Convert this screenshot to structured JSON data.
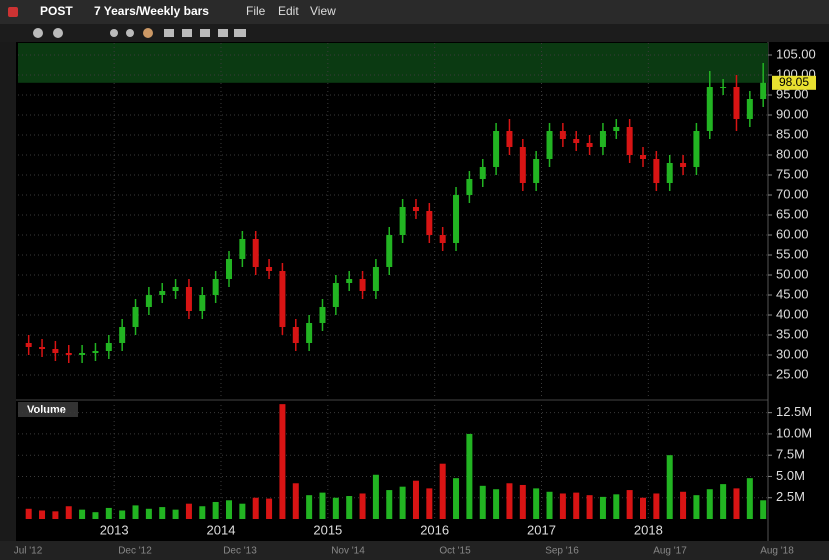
{
  "toolbar": {
    "symbol": "POST",
    "period": "7 Years/Weekly bars",
    "menu": [
      "File",
      "Edit",
      "View"
    ]
  },
  "chart_data": {
    "type": "candlestick",
    "x": [
      2012.2,
      2012.325,
      2012.45,
      2012.575,
      2012.7,
      2012.825,
      2012.95,
      2013.075,
      2013.2,
      2013.325,
      2013.45,
      2013.575,
      2013.7,
      2013.825,
      2013.95,
      2014.075,
      2014.2,
      2014.325,
      2014.45,
      2014.575,
      2014.7,
      2014.825,
      2014.95,
      2015.075,
      2015.2,
      2015.325,
      2015.45,
      2015.575,
      2015.7,
      2015.825,
      2015.95,
      2016.075,
      2016.2,
      2016.325,
      2016.45,
      2016.575,
      2016.7,
      2016.825,
      2016.95,
      2017.075,
      2017.2,
      2017.325,
      2017.45,
      2017.575,
      2017.7,
      2017.825,
      2017.95,
      2018.075,
      2018.2,
      2018.325,
      2018.45,
      2018.575,
      2018.7,
      2018.825,
      2018.95,
      2019.075
    ],
    "open": [
      33,
      32,
      31.5,
      30.5,
      30,
      30.5,
      31,
      33,
      37,
      42,
      45,
      46,
      47,
      41,
      45,
      49,
      54,
      59,
      52,
      51,
      37,
      33,
      38,
      42,
      48,
      49,
      46,
      52,
      60,
      67,
      66,
      60,
      58,
      70,
      74,
      77,
      86,
      82,
      73,
      79,
      86,
      84,
      83,
      82,
      86,
      87,
      80,
      79,
      73,
      78,
      77,
      86,
      97,
      97,
      89,
      94
    ],
    "high": [
      35,
      34,
      33.5,
      32.5,
      32.5,
      33,
      35,
      39,
      44,
      47,
      48,
      49,
      49,
      47,
      51,
      56,
      61,
      61,
      54,
      53,
      39,
      40,
      44,
      50,
      51,
      51,
      54,
      62,
      69,
      69,
      68,
      62,
      72,
      76,
      79,
      88,
      89,
      84,
      81,
      88,
      88,
      86,
      85,
      88,
      89,
      89,
      82,
      81,
      80,
      80,
      88,
      101,
      99,
      100,
      96,
      103
    ],
    "low": [
      30,
      29.5,
      28.5,
      28,
      28,
      28.5,
      29,
      31,
      35,
      40,
      43,
      44,
      39,
      39,
      43,
      47,
      52,
      50,
      49,
      35,
      31,
      31,
      36,
      40,
      46,
      44,
      44,
      50,
      58,
      64,
      58,
      56,
      56,
      68,
      72,
      75,
      80,
      71,
      71,
      77,
      82,
      81,
      80,
      80,
      84,
      78,
      77,
      71,
      71,
      75,
      75,
      84,
      95,
      86,
      87,
      92
    ],
    "close": [
      32,
      31.5,
      30.5,
      30,
      30.5,
      31,
      33,
      37,
      42,
      45,
      46,
      47,
      41,
      45,
      49,
      54,
      59,
      52,
      51,
      37,
      33,
      38,
      42,
      48,
      49,
      46,
      52,
      60,
      67,
      66,
      60,
      58,
      70,
      74,
      77,
      86,
      82,
      73,
      79,
      86,
      84,
      83,
      82,
      86,
      87,
      80,
      79,
      73,
      78,
      77,
      86,
      97,
      97,
      89,
      94,
      98.05
    ],
    "up_color": "#22b422",
    "down_color": "#d81414",
    "last_price": 98.05,
    "xlim": [
      2012.1,
      2019.12
    ],
    "xticks": [
      2013,
      2014,
      2015,
      2016,
      2017,
      2018
    ],
    "ylim": [
      19.25,
      108
    ],
    "yticks": [
      {
        "value": 25,
        "label": "25.00"
      },
      {
        "value": 30,
        "label": "30.00"
      },
      {
        "value": 35,
        "label": "35.00"
      },
      {
        "value": 40,
        "label": "40.00"
      },
      {
        "value": 45,
        "label": "45.00"
      },
      {
        "value": 50,
        "label": "50.00"
      },
      {
        "value": 55,
        "label": "55.00"
      },
      {
        "value": 60,
        "label": "60.00"
      },
      {
        "value": 65,
        "label": "65.00"
      },
      {
        "value": 70,
        "label": "70.00"
      },
      {
        "value": 75,
        "label": "75.00"
      },
      {
        "value": 80,
        "label": "80.00"
      },
      {
        "value": 85,
        "label": "85.00"
      },
      {
        "value": 90,
        "label": "90.00"
      },
      {
        "value": 95,
        "label": "95.00"
      },
      {
        "value": 100,
        "label": "100.00"
      },
      {
        "value": 105,
        "label": "105.00"
      }
    ],
    "grid": true,
    "volume": {
      "title": "Volume",
      "values": [
        1200000,
        1000000,
        900000,
        1500000,
        1100000,
        800000,
        1300000,
        1000000,
        1600000,
        1200000,
        1400000,
        1100000,
        1800000,
        1500000,
        2000000,
        2200000,
        1800000,
        2500000,
        2400000,
        13500000,
        4200000,
        2800000,
        3100000,
        2500000,
        2700000,
        3000000,
        5200000,
        3400000,
        3800000,
        4500000,
        3600000,
        6500000,
        4800000,
        10000000,
        3900000,
        3500000,
        4200000,
        4000000,
        3600000,
        3200000,
        3000000,
        3100000,
        2800000,
        2600000,
        2900000,
        3400000,
        2500000,
        3000000,
        7500000,
        3200000,
        2800000,
        3500000,
        4100000,
        3600000,
        4800000,
        2200000
      ],
      "ylim": [
        0,
        13400000
      ],
      "yticks": [
        {
          "value": 2500000,
          "label": "2.5M"
        },
        {
          "value": 5000000,
          "label": "5.0M"
        },
        {
          "value": 7500000,
          "label": "7.5M"
        },
        {
          "value": 10000000,
          "label": "10.0M"
        },
        {
          "value": 12500000,
          "label": "12.5M"
        }
      ]
    }
  },
  "navigator": {
    "labels": [
      "Jul '12",
      "Dec '12",
      "Dec '13",
      "Nov '14",
      "Oct '15",
      "Sep '16",
      "Aug '17",
      "Aug '18"
    ]
  }
}
